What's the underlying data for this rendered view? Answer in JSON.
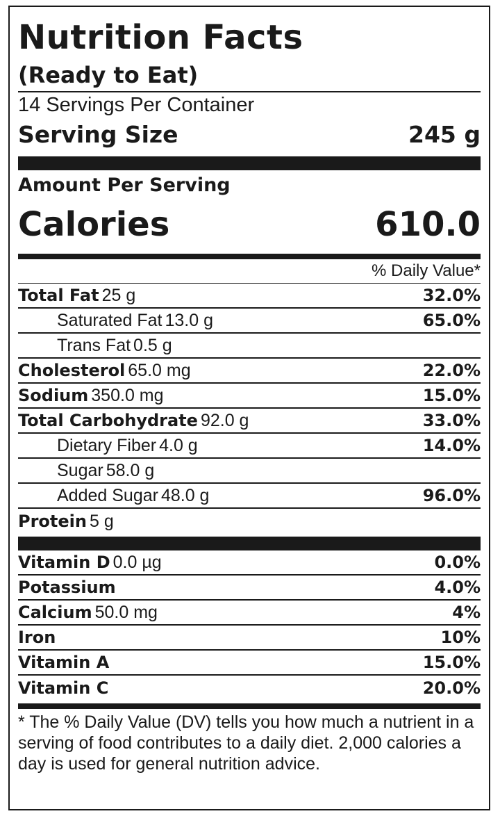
{
  "title": "Nutrition Facts",
  "subtitle": "(Ready to Eat)",
  "servings_per_container": "14 Servings Per Container",
  "serving_size": {
    "label": "Serving Size",
    "value": "245 g"
  },
  "amount_per_serving": "Amount Per Serving",
  "calories": {
    "label": "Calories",
    "value": "610.0"
  },
  "daily_value_header": "% Daily Value*",
  "nutrients": [
    {
      "name": "Total Fat",
      "amount": "25 g",
      "dv": "32.0%"
    },
    {
      "name": "Saturated Fat",
      "amount": "13.0 g",
      "dv": "65.0%"
    },
    {
      "name": "Trans Fat",
      "amount": "0.5 g",
      "dv": ""
    },
    {
      "name": "Cholesterol",
      "amount": "65.0 mg",
      "dv": "22.0%"
    },
    {
      "name": "Sodium",
      "amount": "350.0 mg",
      "dv": "15.0%"
    },
    {
      "name": "Total Carbohydrate",
      "amount": "92.0 g",
      "dv": "33.0%"
    },
    {
      "name": "Dietary Fiber",
      "amount": "4.0 g",
      "dv": "14.0%"
    },
    {
      "name": "Sugar",
      "amount": "58.0 g",
      "dv": ""
    },
    {
      "name": "Added Sugar",
      "amount": "48.0 g",
      "dv": "96.0%"
    },
    {
      "name": "Protein",
      "amount": "5 g",
      "dv": ""
    }
  ],
  "vitamins": [
    {
      "name": "Vitamin D",
      "amount": "0.0 µg",
      "dv": "0.0%"
    },
    {
      "name": "Potassium",
      "amount": "",
      "dv": "4.0%"
    },
    {
      "name": "Calcium",
      "amount": "50.0 mg",
      "dv": "4%"
    },
    {
      "name": "Iron",
      "amount": "",
      "dv": "10%"
    },
    {
      "name": "Vitamin A",
      "amount": "",
      "dv": "15.0%"
    },
    {
      "name": "Vitamin C",
      "amount": "",
      "dv": "20.0%"
    }
  ],
  "footnote": "* The % Daily Value (DV) tells you how much a nutrient in a serving of food contributes to a daily diet. 2,000 calories a day is used for general nutrition advice."
}
